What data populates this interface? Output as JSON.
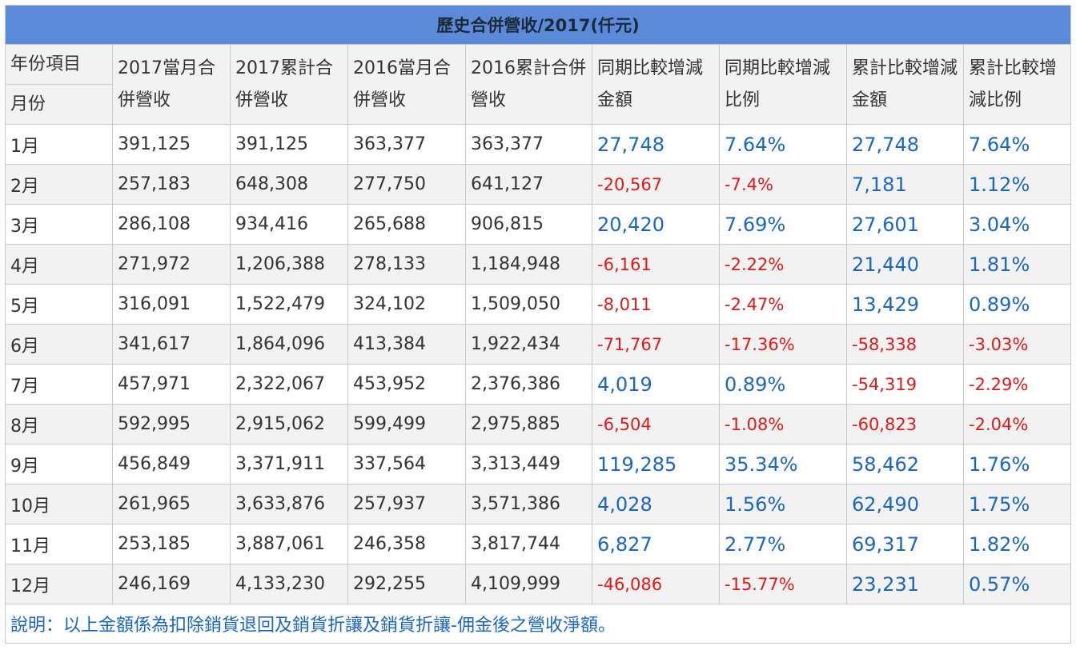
{
  "title": "歷史合併營收/2017(仟元)",
  "header": {
    "year_label": "年份項目",
    "month_label": "月份",
    "columns": [
      "2017當月合併營收",
      "2017累計合併營收",
      "2016當月合併營收",
      "2016累計合併營收",
      "同期比較增減金額",
      "同期比較增減比例",
      "累計比較增減金額",
      "累計比較增減比例"
    ]
  },
  "rows": [
    {
      "month": "1月",
      "cells": [
        {
          "v": "391,125",
          "c": "plain"
        },
        {
          "v": "391,125",
          "c": "plain"
        },
        {
          "v": "363,377",
          "c": "plain"
        },
        {
          "v": "363,377",
          "c": "plain"
        },
        {
          "v": "27,748",
          "c": "pos"
        },
        {
          "v": "7.64%",
          "c": "pos"
        },
        {
          "v": "27,748",
          "c": "pos"
        },
        {
          "v": "7.64%",
          "c": "pos"
        }
      ]
    },
    {
      "month": "2月",
      "cells": [
        {
          "v": "257,183",
          "c": "plain"
        },
        {
          "v": "648,308",
          "c": "plain"
        },
        {
          "v": "277,750",
          "c": "plain"
        },
        {
          "v": "641,127",
          "c": "plain"
        },
        {
          "v": "-20,567",
          "c": "neg"
        },
        {
          "v": "-7.4%",
          "c": "neg"
        },
        {
          "v": "7,181",
          "c": "pos"
        },
        {
          "v": "1.12%",
          "c": "pos"
        }
      ]
    },
    {
      "month": "3月",
      "cells": [
        {
          "v": "286,108",
          "c": "plain"
        },
        {
          "v": "934,416",
          "c": "plain"
        },
        {
          "v": "265,688",
          "c": "plain"
        },
        {
          "v": "906,815",
          "c": "plain"
        },
        {
          "v": "20,420",
          "c": "pos"
        },
        {
          "v": "7.69%",
          "c": "pos"
        },
        {
          "v": "27,601",
          "c": "pos"
        },
        {
          "v": "3.04%",
          "c": "pos"
        }
      ]
    },
    {
      "month": "4月",
      "cells": [
        {
          "v": "271,972",
          "c": "plain"
        },
        {
          "v": "1,206,388",
          "c": "plain"
        },
        {
          "v": "278,133",
          "c": "plain"
        },
        {
          "v": "1,184,948",
          "c": "plain"
        },
        {
          "v": "-6,161",
          "c": "neg"
        },
        {
          "v": "-2.22%",
          "c": "neg"
        },
        {
          "v": "21,440",
          "c": "pos"
        },
        {
          "v": "1.81%",
          "c": "pos"
        }
      ]
    },
    {
      "month": "5月",
      "cells": [
        {
          "v": "316,091",
          "c": "plain"
        },
        {
          "v": "1,522,479",
          "c": "plain"
        },
        {
          "v": "324,102",
          "c": "plain"
        },
        {
          "v": "1,509,050",
          "c": "plain"
        },
        {
          "v": "-8,011",
          "c": "neg"
        },
        {
          "v": "-2.47%",
          "c": "neg"
        },
        {
          "v": "13,429",
          "c": "pos"
        },
        {
          "v": "0.89%",
          "c": "pos"
        }
      ]
    },
    {
      "month": "6月",
      "cells": [
        {
          "v": "341,617",
          "c": "plain"
        },
        {
          "v": "1,864,096",
          "c": "plain"
        },
        {
          "v": "413,384",
          "c": "plain"
        },
        {
          "v": "1,922,434",
          "c": "plain"
        },
        {
          "v": "-71,767",
          "c": "neg"
        },
        {
          "v": "-17.36%",
          "c": "neg"
        },
        {
          "v": "-58,338",
          "c": "neg"
        },
        {
          "v": "-3.03%",
          "c": "neg"
        }
      ]
    },
    {
      "month": "7月",
      "cells": [
        {
          "v": "457,971",
          "c": "plain"
        },
        {
          "v": "2,322,067",
          "c": "plain"
        },
        {
          "v": "453,952",
          "c": "plain"
        },
        {
          "v": "2,376,386",
          "c": "plain"
        },
        {
          "v": "4,019",
          "c": "pos"
        },
        {
          "v": "0.89%",
          "c": "pos"
        },
        {
          "v": "-54,319",
          "c": "neg"
        },
        {
          "v": "-2.29%",
          "c": "neg"
        }
      ]
    },
    {
      "month": "8月",
      "cells": [
        {
          "v": "592,995",
          "c": "plain"
        },
        {
          "v": "2,915,062",
          "c": "plain"
        },
        {
          "v": "599,499",
          "c": "plain"
        },
        {
          "v": "2,975,885",
          "c": "plain"
        },
        {
          "v": "-6,504",
          "c": "neg"
        },
        {
          "v": "-1.08%",
          "c": "neg"
        },
        {
          "v": "-60,823",
          "c": "neg"
        },
        {
          "v": "-2.04%",
          "c": "neg"
        }
      ]
    },
    {
      "month": "9月",
      "cells": [
        {
          "v": "456,849",
          "c": "plain"
        },
        {
          "v": "3,371,911",
          "c": "plain"
        },
        {
          "v": "337,564",
          "c": "plain"
        },
        {
          "v": "3,313,449",
          "c": "plain"
        },
        {
          "v": "119,285",
          "c": "pos"
        },
        {
          "v": "35.34%",
          "c": "pos"
        },
        {
          "v": "58,462",
          "c": "pos"
        },
        {
          "v": "1.76%",
          "c": "pos"
        }
      ]
    },
    {
      "month": "10月",
      "cells": [
        {
          "v": "261,965",
          "c": "plain"
        },
        {
          "v": "3,633,876",
          "c": "plain"
        },
        {
          "v": "257,937",
          "c": "plain"
        },
        {
          "v": "3,571,386",
          "c": "plain"
        },
        {
          "v": "4,028",
          "c": "pos"
        },
        {
          "v": "1.56%",
          "c": "pos"
        },
        {
          "v": "62,490",
          "c": "pos"
        },
        {
          "v": "1.75%",
          "c": "pos"
        }
      ]
    },
    {
      "month": "11月",
      "cells": [
        {
          "v": "253,185",
          "c": "plain"
        },
        {
          "v": "3,887,061",
          "c": "plain"
        },
        {
          "v": "246,358",
          "c": "plain"
        },
        {
          "v": "3,817,744",
          "c": "plain"
        },
        {
          "v": "6,827",
          "c": "pos"
        },
        {
          "v": "2.77%",
          "c": "pos"
        },
        {
          "v": "69,317",
          "c": "pos"
        },
        {
          "v": "1.82%",
          "c": "pos"
        }
      ]
    },
    {
      "month": "12月",
      "cells": [
        {
          "v": "246,169",
          "c": "plain"
        },
        {
          "v": "4,133,230",
          "c": "plain"
        },
        {
          "v": "292,255",
          "c": "plain"
        },
        {
          "v": "4,109,999",
          "c": "plain"
        },
        {
          "v": "-46,086",
          "c": "neg"
        },
        {
          "v": "-15.77%",
          "c": "neg"
        },
        {
          "v": "23,231",
          "c": "pos"
        },
        {
          "v": "0.57%",
          "c": "pos"
        }
      ]
    }
  ],
  "note": "說明：以上金額係為扣除銷貨退回及銷貨折讓及銷貨折讓-佣金後之營收淨額。",
  "colors": {
    "header_band": "#5b8bd8",
    "alt_row": "#f2f2f2",
    "positive": "#1a66c2",
    "negative": "#e31818",
    "border": "#c9c9c9"
  }
}
